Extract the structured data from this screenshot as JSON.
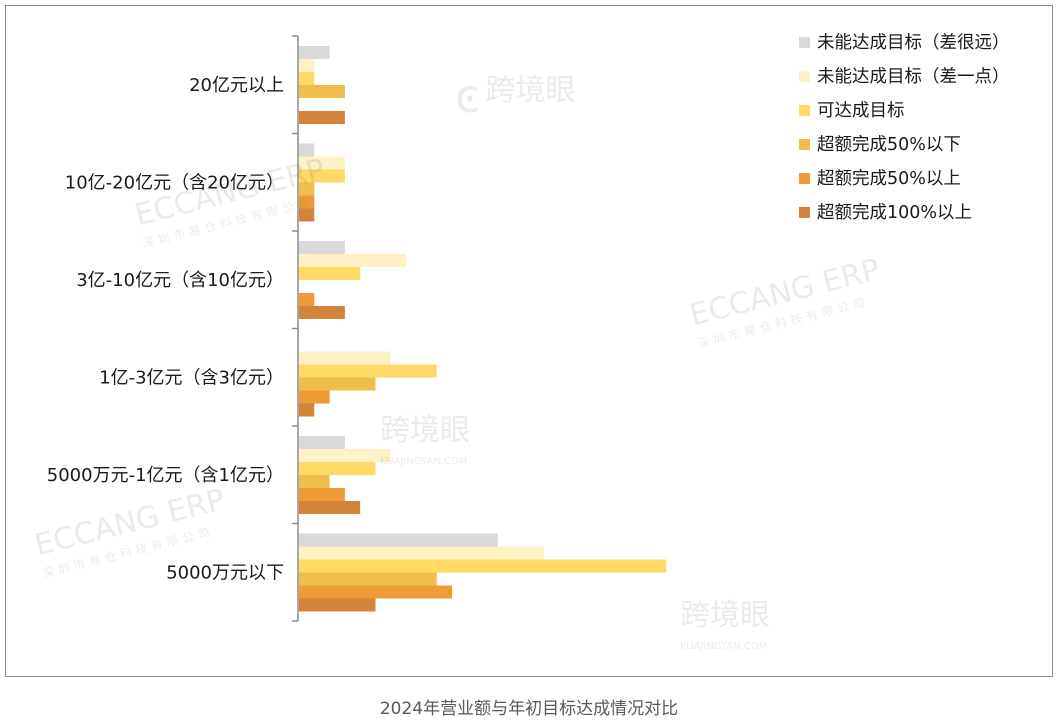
{
  "caption": "2024年营业额与年初目标达成情况对比",
  "watermarks": {
    "eccang_text": "ECCANG ERP",
    "eccang_sub": "深圳市易仓科技有限公司",
    "kuajing_text": "跨境眼",
    "kuajing_sub": "KUAJINGYAN.COM"
  },
  "chart_data": {
    "type": "bar",
    "orientation": "horizontal",
    "title": "",
    "xlabel": "",
    "ylabel": "",
    "xlim": [
      0,
      25
    ],
    "grid": false,
    "legend_position": "top-right",
    "categories": [
      "20亿元以上",
      "10亿-20亿元（含20亿元）",
      "3亿-10亿元（含10亿元）",
      "1亿-3亿元（含3亿元）",
      "5000万元-1亿元（含1亿元）",
      "5000万元以下"
    ],
    "series": [
      {
        "name": "未能达成目标（差很远）",
        "color": "#d9d9d9",
        "values": [
          2,
          1,
          3,
          0,
          3,
          13
        ]
      },
      {
        "name": "未能达成目标（差一点）",
        "color": "#fff0c6",
        "values": [
          1,
          3,
          7,
          6,
          6,
          16
        ]
      },
      {
        "name": "可达成目标",
        "color": "#ffd966",
        "values": [
          1,
          3,
          4,
          9,
          5,
          24
        ]
      },
      {
        "name": "超额完成50%以下",
        "color": "#f0bd4c",
        "values": [
          3,
          1,
          0,
          5,
          2,
          9
        ]
      },
      {
        "name": "超额完成50%以上",
        "color": "#ee9a36",
        "values": [
          0,
          1,
          1,
          2,
          3,
          10
        ]
      },
      {
        "name": "超额完成100%以上",
        "color": "#d2843b",
        "values": [
          3,
          1,
          3,
          1,
          4,
          5
        ]
      }
    ]
  }
}
